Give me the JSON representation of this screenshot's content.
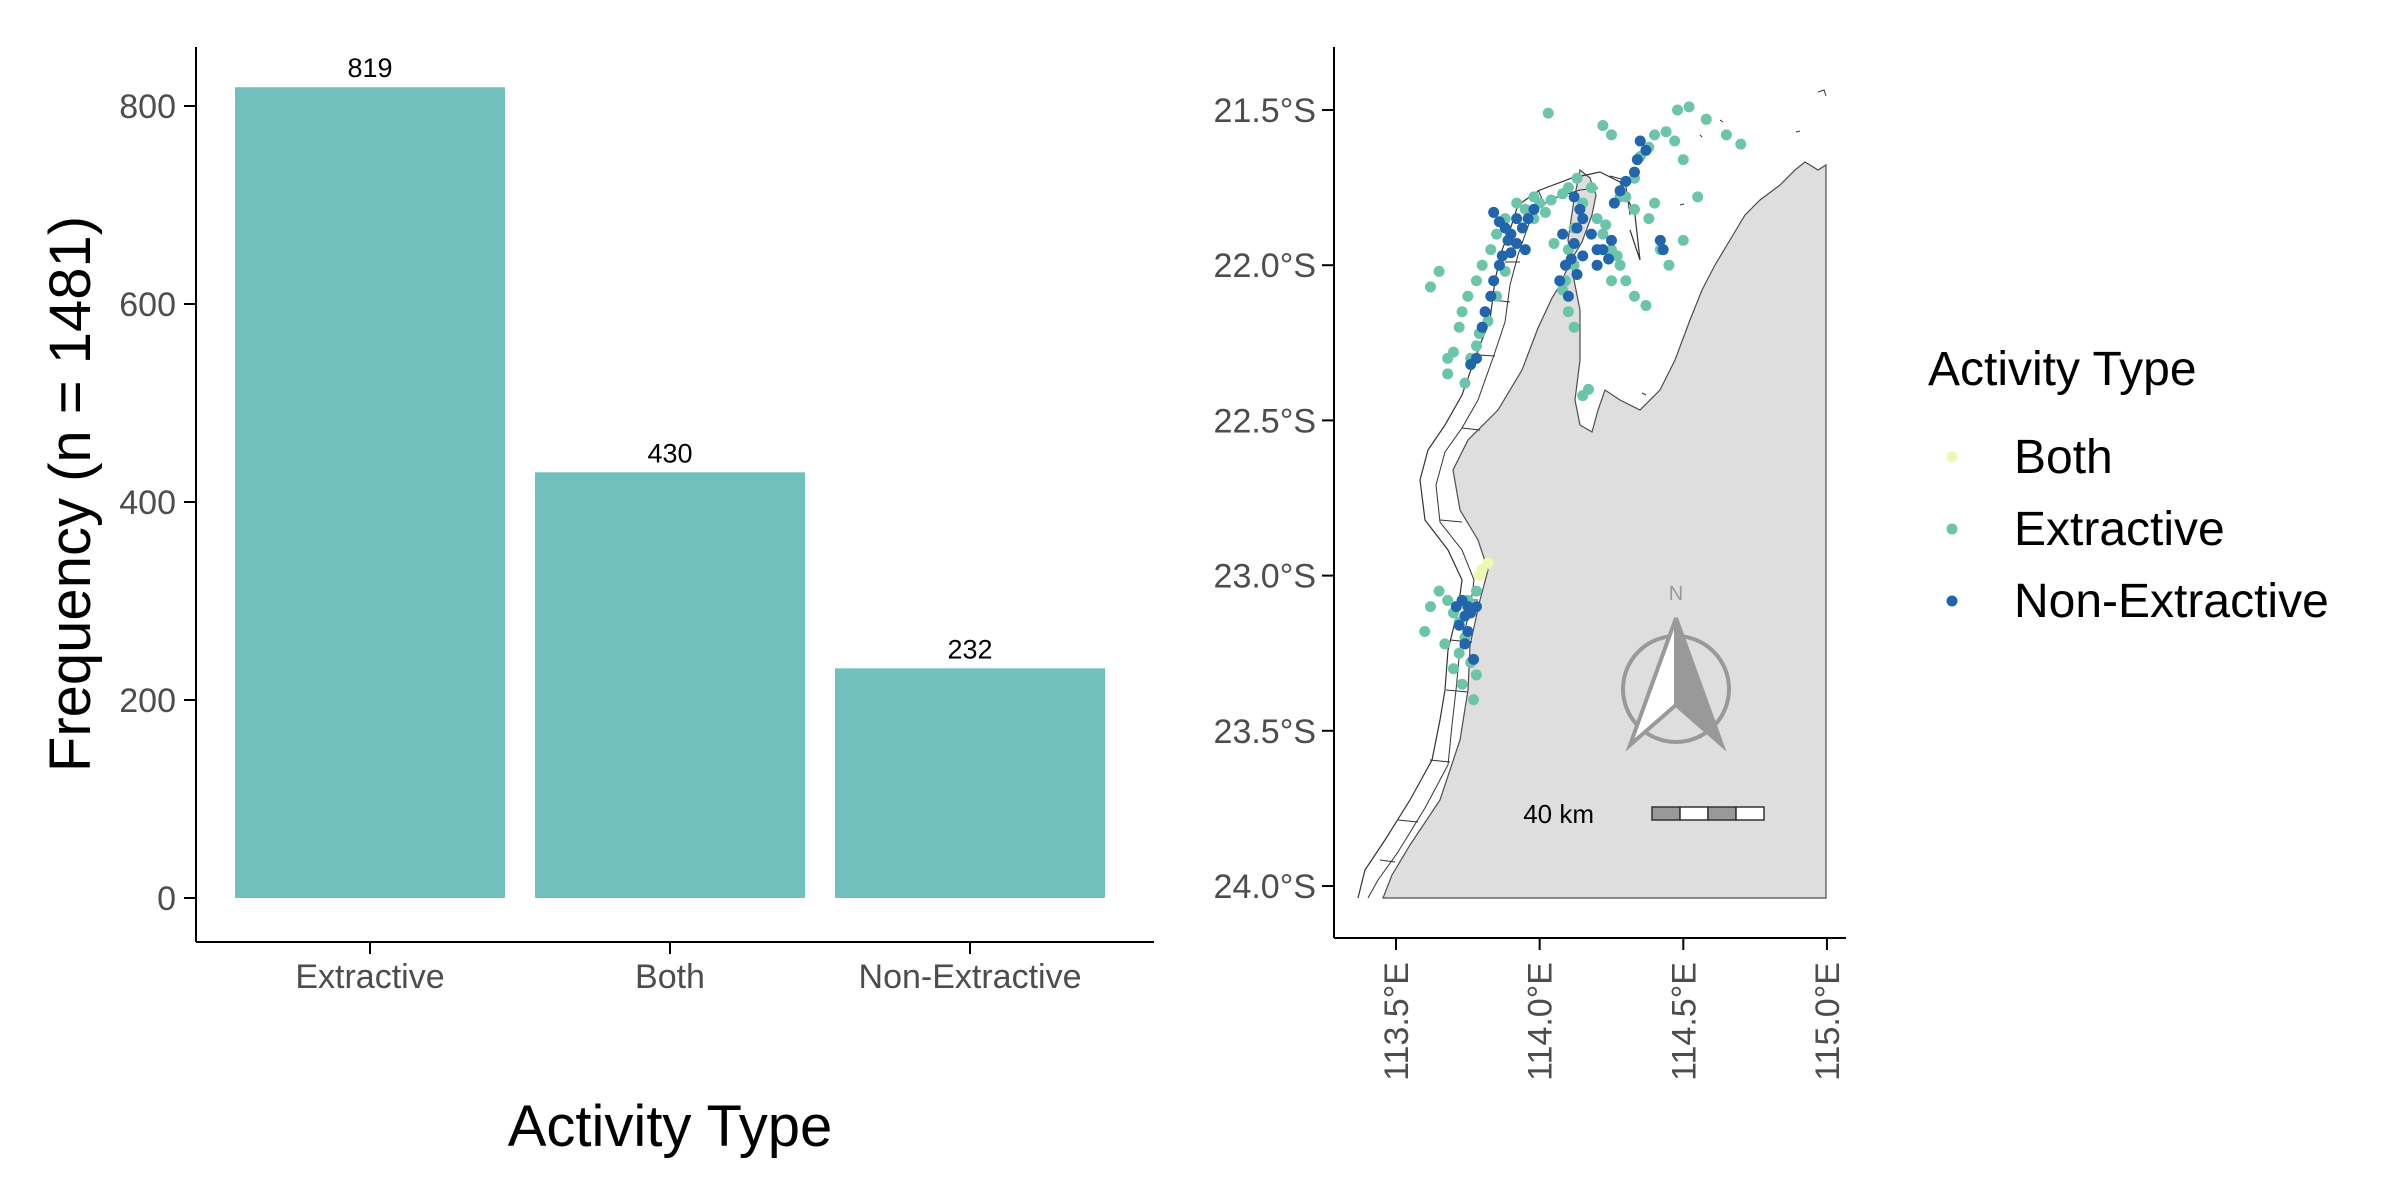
{
  "colors": {
    "bar": "#71c0bd",
    "both": "#edf8b1",
    "extractive": "#6cc5aa",
    "non_extractive": "#2166ac",
    "land": "#dedede",
    "compass": "#999999"
  },
  "chart_data": [
    {
      "type": "bar",
      "categories": [
        "Extractive",
        "Both",
        "Non-Extractive"
      ],
      "values": [
        819,
        430,
        232
      ],
      "data_labels": [
        "819",
        "430",
        "232"
      ],
      "xlabel": "Activity Type",
      "ylabel": "Frequency (n = 1481)",
      "ylim": [
        0,
        860
      ],
      "yticks": [
        0,
        200,
        400,
        600,
        800
      ],
      "ytick_labels": [
        "0",
        "200",
        "400",
        "600",
        "800"
      ],
      "grid": false
    },
    {
      "type": "scatter",
      "title": "",
      "x_range": [
        113.33,
        115.08
      ],
      "y_range": [
        -24.16,
        -21.3
      ],
      "xticks": [
        113.5,
        114.0,
        114.5,
        115.0
      ],
      "xtick_labels": [
        "113.5°E",
        "114.0°E",
        "114.5°E",
        "115.0°E"
      ],
      "yticks": [
        -21.5,
        -22.0,
        -22.5,
        -23.0,
        -23.5,
        -24.0
      ],
      "ytick_labels": [
        "21.5°S",
        "22.0°S",
        "22.5°S",
        "23.0°S",
        "23.5°S",
        "24.0°S"
      ],
      "north_arrow_label": "N",
      "scale_bar_label": "40 km",
      "legend": {
        "title": "Activity Type",
        "position": "right",
        "items": [
          "Both",
          "Extractive",
          "Non-Extractive"
        ]
      },
      "series": [
        {
          "name": "Both",
          "points": [
            [
              113.8,
              -22.98
            ],
            [
              113.82,
              -22.96
            ],
            [
              113.79,
              -23.0
            ]
          ]
        },
        {
          "name": "Extractive",
          "points": [
            [
              113.92,
              -21.8
            ],
            [
              113.95,
              -21.82
            ],
            [
              113.98,
              -21.78
            ],
            [
              114.0,
              -21.8
            ],
            [
              114.04,
              -21.79
            ],
            [
              114.08,
              -21.77
            ],
            [
              113.88,
              -21.85
            ],
            [
              113.85,
              -21.9
            ],
            [
              113.83,
              -21.95
            ],
            [
              113.8,
              -22.0
            ],
            [
              113.78,
              -22.05
            ],
            [
              113.75,
              -22.1
            ],
            [
              113.73,
              -22.15
            ],
            [
              113.72,
              -22.2
            ],
            [
              113.7,
              -22.28
            ],
            [
              113.68,
              -22.35
            ],
            [
              113.62,
              -22.07
            ],
            [
              113.65,
              -22.02
            ],
            [
              113.98,
              -21.85
            ],
            [
              114.02,
              -21.83
            ],
            [
              114.1,
              -21.75
            ],
            [
              114.13,
              -21.72
            ],
            [
              114.18,
              -21.75
            ],
            [
              114.2,
              -21.85
            ],
            [
              114.22,
              -21.9
            ],
            [
              114.25,
              -21.95
            ],
            [
              114.28,
              -22.0
            ],
            [
              114.3,
              -22.05
            ],
            [
              114.1,
              -21.95
            ],
            [
              114.12,
              -22.0
            ],
            [
              114.09,
              -22.05
            ],
            [
              114.1,
              -22.15
            ],
            [
              114.12,
              -22.2
            ],
            [
              114.15,
              -22.42
            ],
            [
              114.17,
              -22.4
            ],
            [
              114.3,
              -21.78
            ],
            [
              114.33,
              -21.72
            ],
            [
              114.35,
              -21.65
            ],
            [
              114.38,
              -21.62
            ],
            [
              114.4,
              -21.58
            ],
            [
              114.44,
              -21.57
            ],
            [
              114.48,
              -21.5
            ],
            [
              114.52,
              -21.49
            ],
            [
              114.58,
              -21.53
            ],
            [
              114.65,
              -21.58
            ],
            [
              114.7,
              -21.61
            ],
            [
              114.22,
              -21.55
            ],
            [
              114.25,
              -21.58
            ],
            [
              114.03,
              -21.51
            ],
            [
              114.47,
              -21.6
            ],
            [
              114.5,
              -21.66
            ],
            [
              114.33,
              -21.82
            ],
            [
              114.38,
              -21.85
            ],
            [
              114.42,
              -21.95
            ],
            [
              114.45,
              -22.0
            ],
            [
              114.33,
              -22.1
            ],
            [
              114.37,
              -22.13
            ],
            [
              114.4,
              -21.8
            ],
            [
              114.55,
              -21.78
            ],
            [
              114.5,
              -21.92
            ],
            [
              114.28,
              -21.78
            ],
            [
              114.25,
              -22.05
            ],
            [
              114.27,
              -21.97
            ],
            [
              114.23,
              -21.87
            ],
            [
              114.15,
              -21.8
            ],
            [
              114.12,
              -21.88
            ],
            [
              114.05,
              -21.93
            ],
            [
              114.08,
              -22.08
            ],
            [
              113.88,
              -22.02
            ],
            [
              113.85,
              -22.1
            ],
            [
              113.82,
              -22.18
            ],
            [
              113.78,
              -22.26
            ],
            [
              113.76,
              -22.3
            ],
            [
              113.74,
              -22.38
            ],
            [
              113.79,
              -22.22
            ],
            [
              113.68,
              -22.3
            ],
            [
              113.65,
              -23.05
            ],
            [
              113.68,
              -23.08
            ],
            [
              113.7,
              -23.12
            ],
            [
              113.72,
              -23.15
            ],
            [
              113.74,
              -23.2
            ],
            [
              113.72,
              -23.25
            ],
            [
              113.76,
              -23.28
            ],
            [
              113.78,
              -23.32
            ],
            [
              113.7,
              -23.3
            ],
            [
              113.67,
              -23.22
            ],
            [
              113.62,
              -23.1
            ],
            [
              113.6,
              -23.18
            ],
            [
              113.75,
              -23.08
            ],
            [
              113.78,
              -23.05
            ],
            [
              113.73,
              -23.35
            ],
            [
              113.77,
              -23.4
            ]
          ]
        },
        {
          "name": "Non-Extractive",
          "points": [
            [
              113.84,
              -21.83
            ],
            [
              113.86,
              -21.86
            ],
            [
              113.88,
              -21.88
            ],
            [
              113.9,
              -21.9
            ],
            [
              113.92,
              -21.85
            ],
            [
              113.94,
              -21.88
            ],
            [
              113.96,
              -21.85
            ],
            [
              113.98,
              -21.82
            ],
            [
              113.89,
              -21.92
            ],
            [
              113.87,
              -21.97
            ],
            [
              113.86,
              -22.0
            ],
            [
              113.84,
              -22.05
            ],
            [
              113.83,
              -22.1
            ],
            [
              113.81,
              -22.15
            ],
            [
              113.8,
              -22.2
            ],
            [
              113.78,
              -22.3
            ],
            [
              113.76,
              -22.32
            ],
            [
              113.92,
              -21.93
            ],
            [
              113.9,
              -21.96
            ],
            [
              113.95,
              -21.95
            ],
            [
              114.12,
              -21.78
            ],
            [
              114.14,
              -21.82
            ],
            [
              114.13,
              -21.88
            ],
            [
              114.12,
              -21.93
            ],
            [
              114.11,
              -21.98
            ],
            [
              114.13,
              -22.03
            ],
            [
              114.1,
              -22.1
            ],
            [
              114.15,
              -21.85
            ],
            [
              114.18,
              -21.9
            ],
            [
              114.2,
              -21.95
            ],
            [
              114.22,
              -21.95
            ],
            [
              114.25,
              -21.92
            ],
            [
              114.35,
              -21.6
            ],
            [
              114.37,
              -21.63
            ],
            [
              114.34,
              -21.66
            ],
            [
              114.33,
              -21.7
            ],
            [
              114.3,
              -21.73
            ],
            [
              114.28,
              -21.76
            ],
            [
              114.26,
              -21.8
            ],
            [
              114.42,
              -21.92
            ],
            [
              114.43,
              -21.95
            ],
            [
              114.09,
              -22.0
            ],
            [
              114.07,
              -22.05
            ],
            [
              114.15,
              -21.97
            ],
            [
              114.2,
              -22.0
            ],
            [
              114.24,
              -21.98
            ],
            [
              114.08,
              -21.9
            ],
            [
              113.73,
              -23.08
            ],
            [
              113.75,
              -23.1
            ],
            [
              113.74,
              -23.13
            ],
            [
              113.72,
              -23.16
            ],
            [
              113.76,
              -23.12
            ],
            [
              113.78,
              -23.1
            ],
            [
              113.75,
              -23.18
            ],
            [
              113.77,
              -23.27
            ],
            [
              113.74,
              -23.22
            ],
            [
              113.71,
              -23.1
            ]
          ]
        }
      ]
    }
  ]
}
